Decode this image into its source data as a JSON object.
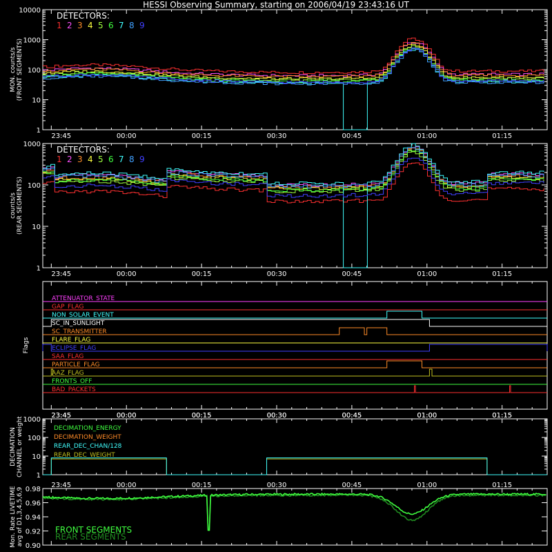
{
  "title": "HESSI Observing Summary, starting on 2006/04/19 23:43:16 UT",
  "colors": {
    "bg": "#000000",
    "axis": "#ffffff",
    "det": [
      "#ff3030",
      "#ff50ff",
      "#ff8c28",
      "#ffff40",
      "#a0ff40",
      "#40ff40",
      "#40ffff",
      "#40a0ff",
      "#4040ff"
    ]
  },
  "chart_data": [
    {
      "type": "line",
      "name": "front",
      "ylabel_lines": [
        "MON. counts/s",
        "(FRONT SEGMENTS)"
      ],
      "ylim": [
        1,
        10000
      ],
      "log_y": true,
      "yticks": [
        "1",
        "10",
        "100",
        "1000",
        "10000"
      ],
      "legend_title": "DETECTORS:",
      "legend_items": [
        "1",
        "2",
        "3",
        "4",
        "5",
        "6",
        "7",
        "8",
        "9"
      ],
      "x_unit": "minutes since 23:45",
      "xlim": [
        -1.7,
        99
      ],
      "xticks": [
        "23:45",
        "00:00",
        "00:15",
        "00:30",
        "00:45",
        "01:00",
        "01:15"
      ],
      "detector_base": [
        90,
        70,
        65,
        55,
        50,
        45,
        40,
        38,
        42
      ],
      "peak_time": 72,
      "peak_factor": 12,
      "dropout": [
        57.5,
        62.5
      ]
    },
    {
      "type": "line",
      "name": "rear",
      "ylabel_lines": [
        "counts/s",
        "(REAR SEGMENTS)"
      ],
      "ylim": [
        1,
        1000
      ],
      "log_y": true,
      "yticks": [
        "1",
        "10",
        "100",
        "1000"
      ],
      "legend_title": "DETECTORS:",
      "legend_items": [
        "1",
        "2",
        "3",
        "4",
        "5",
        "6",
        "7",
        "8",
        "9"
      ],
      "x_unit": "minutes since 23:45",
      "xlim": [
        -1.7,
        99
      ],
      "xticks": [
        "23:45",
        "00:00",
        "00:15",
        "00:30",
        "00:45",
        "01:00",
        "01:15"
      ],
      "detector_base": [
        80,
        180,
        160,
        150,
        130,
        140,
        200,
        170,
        110
      ],
      "attenuated_ranges": [
        [
          -1.7,
          0
        ],
        [
          23,
          43
        ],
        [
          87,
          99
        ]
      ],
      "peak_time": 72,
      "peak_factor": 8,
      "dropout": [
        57.5,
        62.5
      ]
    },
    {
      "type": "step",
      "name": "flags",
      "ylabel": "Flags",
      "xticks": [
        "23:45",
        "00:00",
        "00:15",
        "00:30",
        "00:45",
        "01:00",
        "01:15"
      ],
      "flags": [
        {
          "label": "ATTENUATOR_STATE",
          "color": "#ff40ff",
          "on": []
        },
        {
          "label": "GAP_FLAG",
          "color": "#ff3030",
          "on": []
        },
        {
          "label": "NON_SOLAR_EVENT",
          "color": "#40ffff",
          "on": [
            [
              67,
              74
            ]
          ]
        },
        {
          "label": "SC_IN_SUNLIGHT",
          "color": "#ffffff",
          "on": [
            [
              0,
              75.5
            ]
          ]
        },
        {
          "label": "SC_TRANSMITTER",
          "color": "#ff8c28",
          "on": [
            [
              57.5,
              62.5
            ],
            [
              63,
              67
            ]
          ]
        },
        {
          "label": "FLARE_FLAG",
          "color": "#ffff40",
          "on": []
        },
        {
          "label": "ECLIPSE_FLAG",
          "color": "#4040ff",
          "on": [
            [
              -1.7,
              0
            ],
            [
              75.5,
              99
            ]
          ]
        },
        {
          "label": "SAA_FLAG",
          "color": "#ff3030",
          "on": []
        },
        {
          "label": "PARTICLE_FLAG",
          "color": "#ff8c28",
          "on": [
            [
              67,
              74
            ]
          ]
        },
        {
          "label": "AAZ_FLAG",
          "color": "#c0c020",
          "on": [
            [
              0,
              0.3
            ],
            [
              75.5,
              76
            ]
          ]
        },
        {
          "label": "FRONTS_OFF",
          "color": "#40ff40",
          "on": []
        },
        {
          "label": "BAD_PACKETS",
          "color": "#ff3030",
          "on": [
            [
              72.5,
              72.7
            ],
            [
              91.5,
              91.7
            ]
          ]
        }
      ]
    },
    {
      "type": "step",
      "name": "decimation",
      "ylabel_lines": [
        "DECIMATION",
        "CHANNEL or weight"
      ],
      "ylim": [
        1,
        1000
      ],
      "log_y": true,
      "yticks": [
        "1",
        "10",
        "100",
        "1000"
      ],
      "xticks": [
        "23:45",
        "00:00",
        "00:15",
        "00:30",
        "00:45",
        "01:00",
        "01:15"
      ],
      "legend": [
        {
          "label": "DECIMATION_ENERGY",
          "color": "#40ff40"
        },
        {
          "label": "DECIMATION_WEIGHT",
          "color": "#ff8c28"
        },
        {
          "label": "REAR_DEC_CHAN/128",
          "color": "#40ffff"
        },
        {
          "label": "REAR_DEC_WEIGHT",
          "color": "#c0c020"
        }
      ],
      "rear_dec_chan_high": 8,
      "rear_dec_weight_high": 7,
      "high_ranges": [
        [
          0,
          23
        ],
        [
          43,
          87
        ]
      ]
    },
    {
      "type": "line",
      "name": "livetime",
      "ylabel_lines": [
        "Mon. Rate LIVETIME",
        "avg of D1,3,4,5,6,9"
      ],
      "ylim": [
        0.9,
        0.98
      ],
      "yticks": [
        "0.90",
        "0.92",
        "0.94",
        "0.96",
        "0.98"
      ],
      "xticks": [
        "23:45",
        "00:00",
        "00:15",
        "00:30",
        "00:45",
        "01:00",
        "01:15"
      ],
      "legend": [
        {
          "label": "FRONT SEGMENTS",
          "color": "#40ff40"
        },
        {
          "label": "REAR SEGMENTS",
          "color": "#208c20"
        }
      ],
      "baseline": 0.972,
      "dip_time": 72,
      "dip_min": 0.944,
      "spike_time": 31.5,
      "spike_min": 0.921
    }
  ]
}
